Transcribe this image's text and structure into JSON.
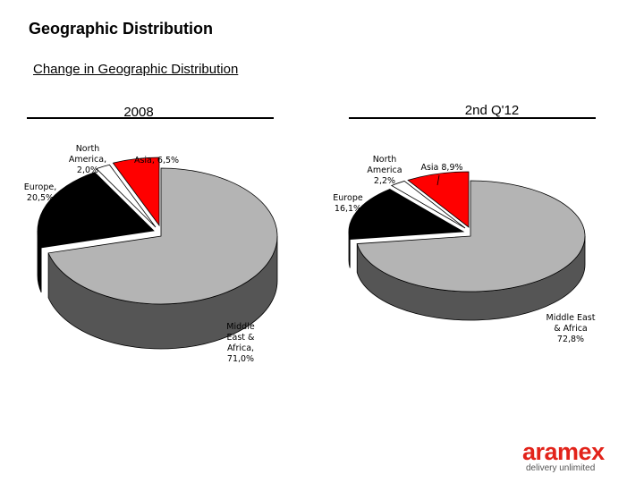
{
  "page": {
    "title": "Geographic Distribution",
    "subtitle": "Change in Geographic Distribution"
  },
  "logo": {
    "word": "aramex",
    "tagline": "delivery unlimited"
  },
  "colors": {
    "middle_east_africa": "#b4b4b4",
    "europe": "#000000",
    "north_america": "#ffffff",
    "asia": "#ff0000",
    "side_shade": "#555555"
  },
  "chart_data": [
    {
      "type": "pie",
      "title": "2008",
      "categories": [
        "Middle East & Africa",
        "Europe",
        "North America",
        "Asia"
      ],
      "values": [
        71.0,
        20.5,
        2.0,
        6.5
      ],
      "labels": [
        {
          "key": "mea",
          "text": "Middle\nEast &\nAfrica,\n71,0%"
        },
        {
          "key": "europe",
          "text": "Europe,\n20,5%"
        },
        {
          "key": "na",
          "text": "North\nAmerica,\n2,0%"
        },
        {
          "key": "asia",
          "text": "Asia, 6,5%"
        }
      ],
      "exploded": [
        "Europe",
        "North America",
        "Asia"
      ],
      "style": "3d"
    },
    {
      "type": "pie",
      "title": "2nd Q'12",
      "categories": [
        "Middle East & Africa",
        "Europe",
        "North America",
        "Asia"
      ],
      "values": [
        72.8,
        16.1,
        2.2,
        8.9
      ],
      "labels": [
        {
          "key": "mea",
          "text": "Middle East\n& Africa\n72,8%"
        },
        {
          "key": "europe",
          "text": "Europe\n16,1%"
        },
        {
          "key": "na",
          "text": "North\nAmerica\n2,2%"
        },
        {
          "key": "asia",
          "text": "Asia 8,9%"
        }
      ],
      "exploded": [
        "Europe",
        "North America",
        "Asia"
      ],
      "style": "3d"
    }
  ]
}
